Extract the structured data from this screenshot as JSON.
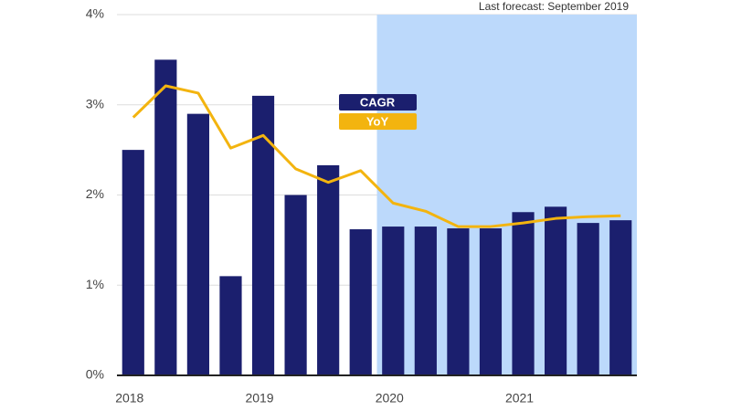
{
  "chart_data": {
    "type": "bar_line",
    "annotation": "Last forecast: September 2019",
    "categories": [
      "2018",
      null,
      null,
      null,
      "2019",
      null,
      null,
      null,
      "2020",
      null,
      null,
      null,
      "2021",
      null,
      null,
      null
    ],
    "series": [
      {
        "name": "CAGR",
        "type": "bar",
        "color": "#1b1f6e",
        "values": [
          2.5,
          3.5,
          2.9,
          1.1,
          3.1,
          2.0,
          2.33,
          1.62,
          1.65,
          1.65,
          1.63,
          1.63,
          1.81,
          1.87,
          1.69,
          1.72
        ]
      },
      {
        "name": "YoY",
        "type": "line",
        "color": "#f3b40f",
        "values": [
          2.86,
          3.21,
          3.13,
          2.52,
          2.66,
          2.29,
          2.14,
          2.27,
          1.91,
          1.82,
          1.65,
          1.65,
          1.69,
          1.74,
          1.76,
          1.77
        ]
      }
    ],
    "forecast_from_index": 8,
    "forecast_color": "#bcd9fb",
    "ylim": [
      0,
      4
    ],
    "yticks": [
      {
        "value": 0,
        "label": "0%"
      },
      {
        "value": 1,
        "label": "1%"
      },
      {
        "value": 2,
        "label": "2%"
      },
      {
        "value": 3,
        "label": "3%"
      },
      {
        "value": 4,
        "label": "4%"
      }
    ],
    "grid": true
  }
}
